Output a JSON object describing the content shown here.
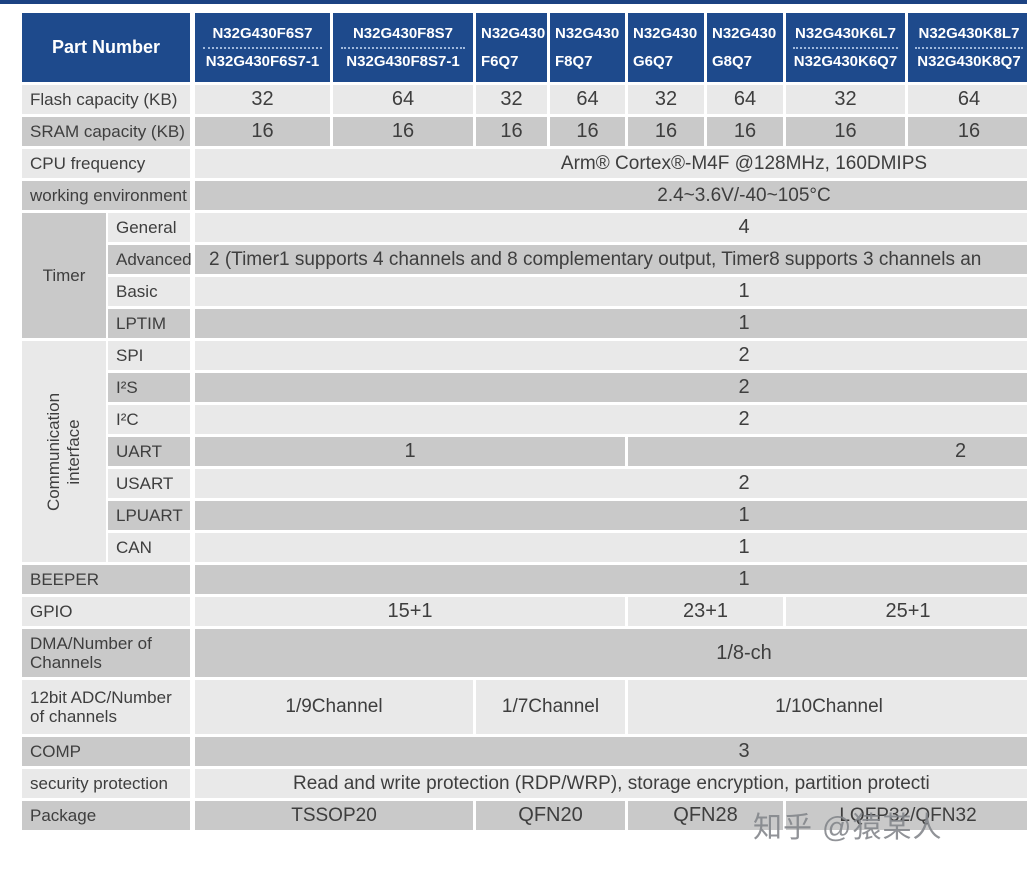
{
  "header": {
    "title": "Part Number",
    "columns": [
      {
        "line1": "N32G430F6S7",
        "line2": "N32G430F6S7-1",
        "divider": true,
        "align": "center"
      },
      {
        "line1": "N32G430F8S7",
        "line2": "N32G430F8S7-1",
        "divider": true,
        "align": "center"
      },
      {
        "line1": "N32G430",
        "line2": "F6Q7",
        "divider": false,
        "align": "left"
      },
      {
        "line1": "N32G430",
        "line2": "F8Q7",
        "divider": false,
        "align": "left"
      },
      {
        "line1": "N32G430",
        "line2": "G6Q7",
        "divider": false,
        "align": "left"
      },
      {
        "line1": "N32G430",
        "line2": "G8Q7",
        "divider": false,
        "align": "left"
      },
      {
        "line1": "N32G430K6L7",
        "line2": "N32G430K6Q7",
        "divider": true,
        "align": "center"
      },
      {
        "line1": "N32G430K8L7",
        "line2": "N32G430K8Q7",
        "divider": true,
        "align": "center"
      },
      {
        "line1": "",
        "line2": "",
        "divider": false,
        "align": "center"
      }
    ]
  },
  "rows": [
    {
      "label": "Flash capacity (KB)",
      "shade": "light",
      "cells": [
        {
          "span": "c1",
          "text": "32"
        },
        {
          "span": "c2",
          "text": "64"
        },
        {
          "span": "c3",
          "text": "32"
        },
        {
          "span": "c4",
          "text": "64"
        },
        {
          "span": "c5",
          "text": "32"
        },
        {
          "span": "c6",
          "text": "64"
        },
        {
          "span": "c7",
          "text": "32"
        },
        {
          "span": "c8",
          "text": "64"
        },
        {
          "span": "c9",
          "text": ""
        }
      ]
    },
    {
      "label": "SRAM capacity (KB)",
      "shade": "dark",
      "cells": [
        {
          "span": "c1",
          "text": "16"
        },
        {
          "span": "c2",
          "text": "16"
        },
        {
          "span": "c3",
          "text": "16"
        },
        {
          "span": "c4",
          "text": "16"
        },
        {
          "span": "c5",
          "text": "16"
        },
        {
          "span": "c6",
          "text": "16"
        },
        {
          "span": "c7",
          "text": "16"
        },
        {
          "span": "c8",
          "text": "16"
        },
        {
          "span": "c9",
          "text": ""
        }
      ]
    },
    {
      "label": "CPU frequency",
      "shade": "light",
      "cells": [
        {
          "span": "full",
          "text": "Arm® Cortex®-M4F @128MHz, 160DMIPS"
        }
      ]
    },
    {
      "label": "working environment",
      "shade": "dark",
      "cells": [
        {
          "span": "full",
          "text": "2.4~3.6V/-40~105°C"
        }
      ]
    },
    {
      "type": "group",
      "label": "Timer",
      "vertical": false,
      "shade": "dark",
      "rows": [
        {
          "label": "General",
          "shade": "light",
          "cells": [
            {
              "span": "full",
              "text": "4"
            }
          ]
        },
        {
          "label": "Advanced",
          "shade": "dark",
          "cells": [
            {
              "span": "full",
              "text": "2 (Timer1 supports 4 channels and 8 complementary output, Timer8 supports 3 channels an",
              "align": "left",
              "indent": 14
            }
          ]
        },
        {
          "label": "Basic",
          "shade": "light",
          "cells": [
            {
              "span": "full",
              "text": "1"
            }
          ]
        },
        {
          "label": "LPTIM",
          "shade": "dark",
          "cells": [
            {
              "span": "full",
              "text": "1"
            }
          ]
        }
      ]
    },
    {
      "type": "group",
      "label": "Communication interface",
      "lines": [
        "Communication",
        "interface"
      ],
      "vertical": true,
      "shade": "light",
      "rows": [
        {
          "label": "SPI",
          "shade": "light",
          "cells": [
            {
              "span": "full",
              "text": "2"
            }
          ]
        },
        {
          "label": "I²S",
          "shade": "dark",
          "cells": [
            {
              "span": "full",
              "text": "2"
            }
          ]
        },
        {
          "label": "I²C",
          "shade": "light",
          "cells": [
            {
              "span": "full",
              "text": "2"
            }
          ]
        },
        {
          "label": "UART",
          "shade": "dark",
          "cells": [
            {
              "span": "c1:c4",
              "text": "1"
            },
            {
              "span": "c5:c9",
              "text": "2"
            }
          ]
        },
        {
          "label": "USART",
          "shade": "light",
          "cells": [
            {
              "span": "full",
              "text": "2"
            }
          ]
        },
        {
          "label": "LPUART",
          "shade": "dark",
          "cells": [
            {
              "span": "full",
              "text": "1"
            }
          ]
        },
        {
          "label": "CAN",
          "shade": "light",
          "cells": [
            {
              "span": "full",
              "text": "1"
            }
          ]
        }
      ]
    },
    {
      "label": "BEEPER",
      "shade": "dark",
      "cells": [
        {
          "span": "full",
          "text": "1"
        }
      ]
    },
    {
      "label": "GPIO",
      "shade": "light",
      "cells": [
        {
          "span": "c1:c4",
          "text": "15+1"
        },
        {
          "span": "c5:c6",
          "text": "23+1"
        },
        {
          "span": "c7:c8",
          "text": "25+1"
        },
        {
          "span": "c9",
          "text": ""
        }
      ]
    },
    {
      "label": "DMA/Number of Channels",
      "shade": "dark",
      "h": 48,
      "cells": [
        {
          "span": "full",
          "text": "1/8-ch"
        }
      ]
    },
    {
      "label": "12bit ADC/Number of channels",
      "shade": "light",
      "h": 54,
      "cells": [
        {
          "span": "c1:c2",
          "text": "1/9Channel"
        },
        {
          "span": "c3:c4",
          "text": "1/7Channel"
        },
        {
          "span": "c5:c8",
          "text": "1/10Channel"
        },
        {
          "span": "c9",
          "text": ""
        }
      ]
    },
    {
      "label": "COMP",
      "shade": "dark",
      "cells": [
        {
          "span": "full",
          "text": "3"
        }
      ]
    },
    {
      "label": "security protection",
      "shade": "light",
      "cells": [
        {
          "span": "full",
          "text": "Read and write protection (RDP/WRP), storage encryption, partition protecti",
          "align": "left",
          "indent": 98
        }
      ]
    },
    {
      "label": "Package",
      "shade": "dark",
      "cells": [
        {
          "span": "c1:c2",
          "text": "TSSOP20"
        },
        {
          "span": "c3:c4",
          "text": "QFN20"
        },
        {
          "span": "c5:c6",
          "text": "QFN28"
        },
        {
          "span": "c7:c8",
          "text": "LQFP32/QFN32"
        },
        {
          "span": "c9",
          "text": ""
        }
      ]
    }
  ],
  "watermark": "知乎 @猿某人",
  "colors": {
    "header_bg": "#1e4a8c",
    "top_bar": "#1c4282",
    "row_light": "#e9e9e9",
    "row_dark": "#c9c9c9",
    "text": "#3e3e3e",
    "header_text": "#ffffff"
  }
}
